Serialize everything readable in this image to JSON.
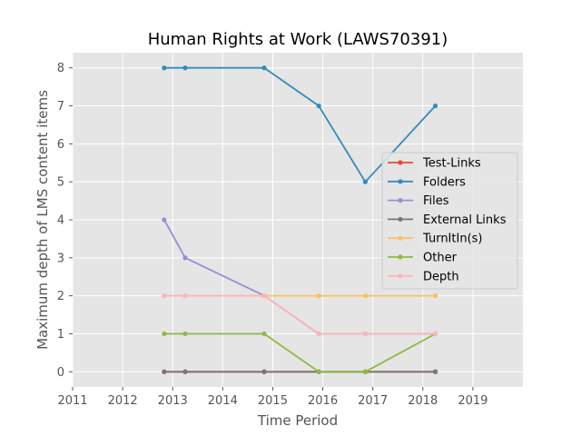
{
  "chart_data": {
    "type": "line",
    "title": "Human Rights at Work (LAWS70391)",
    "xlabel": "Time Period",
    "ylabel": "Maximum depth of LMS content items",
    "xlim": [
      2011,
      2020
    ],
    "ylim": [
      -0.4,
      8.4
    ],
    "xticks": [
      "2011",
      "2012",
      "2013",
      "2014",
      "2015",
      "2016",
      "2017",
      "2018",
      "2019"
    ],
    "yticks": [
      "0",
      "1",
      "2",
      "3",
      "4",
      "5",
      "6",
      "7",
      "8"
    ],
    "grid": true,
    "legend_position": "center-right",
    "x": [
      2012.83,
      2013.25,
      2014.83,
      2015.92,
      2016.85,
      2018.25
    ],
    "series": [
      {
        "name": "Test-Links",
        "color": "#E24A33",
        "values": [
          0,
          0,
          0,
          0,
          0,
          0
        ]
      },
      {
        "name": "Folders",
        "color": "#348ABD",
        "values": [
          8,
          8,
          8,
          7,
          5,
          7
        ]
      },
      {
        "name": "Files",
        "color": "#988ED5",
        "values": [
          4,
          3,
          2,
          1,
          1,
          1
        ]
      },
      {
        "name": "External Links",
        "color": "#777777",
        "values": [
          0,
          0,
          0,
          0,
          0,
          0
        ]
      },
      {
        "name": "TurnItIn(s)",
        "color": "#FBC15E",
        "values": [
          2,
          2,
          2,
          2,
          2,
          2
        ]
      },
      {
        "name": "Other",
        "color": "#8EBA42",
        "values": [
          1,
          1,
          1,
          0,
          0,
          1
        ]
      },
      {
        "name": "Depth",
        "color": "#FFB5B8",
        "values": [
          2,
          2,
          2,
          1,
          1,
          1
        ]
      }
    ]
  }
}
